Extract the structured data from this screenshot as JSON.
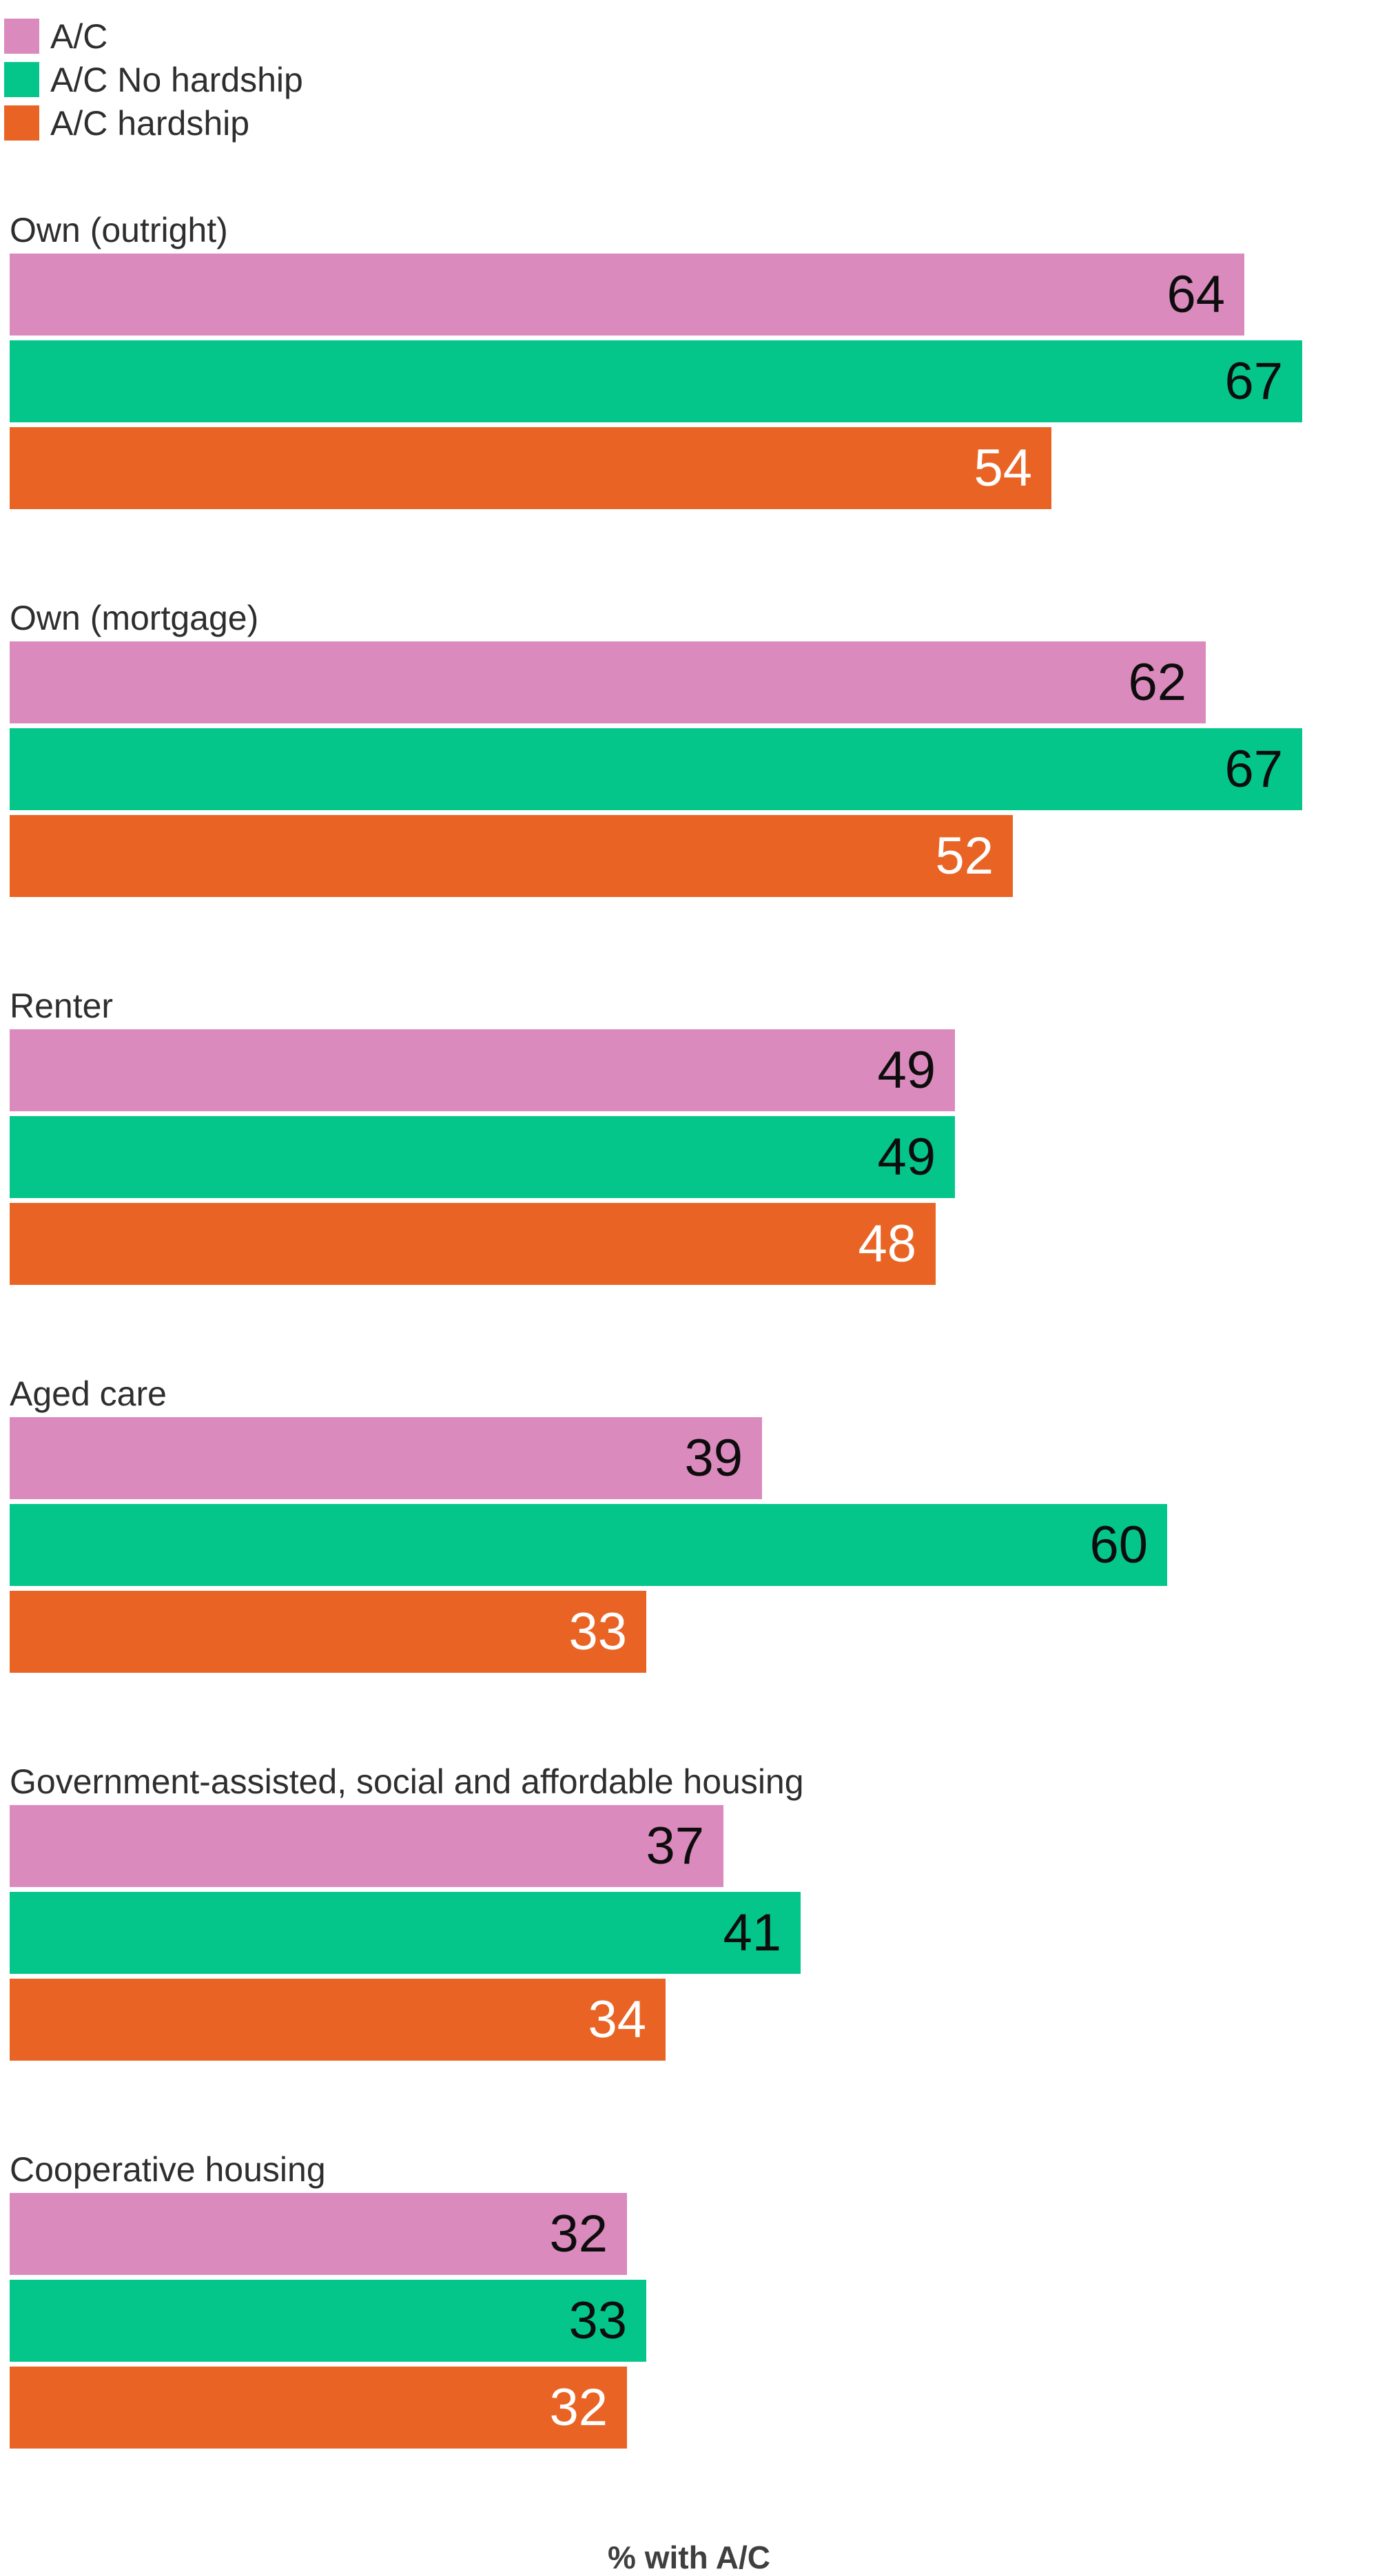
{
  "chart_data": {
    "type": "bar",
    "orientation": "horizontal",
    "title": "",
    "xlabel": "% with A/C",
    "ylabel": "",
    "xlim": [
      0,
      70
    ],
    "grid": false,
    "legend_position": "top-left",
    "value_labels": "inside-right",
    "series": [
      {
        "name": "A/C",
        "color": "#db8abd",
        "value_label_color": "#0d0d0d"
      },
      {
        "name": "A/C No hardship",
        "color": "#04c68b",
        "value_label_color": "#0d0d0d"
      },
      {
        "name": "A/C hardship",
        "color": "#e96424",
        "value_label_color": "#ffffff"
      }
    ],
    "categories": [
      "Own (outright)",
      "Own (mortgage)",
      "Renter",
      "Aged care",
      "Government-assisted, social and affordable housing",
      "Cooperative housing"
    ],
    "values": [
      [
        64,
        67,
        54
      ],
      [
        62,
        67,
        52
      ],
      [
        49,
        49,
        48
      ],
      [
        39,
        60,
        33
      ],
      [
        37,
        41,
        34
      ],
      [
        32,
        33,
        32
      ]
    ]
  }
}
